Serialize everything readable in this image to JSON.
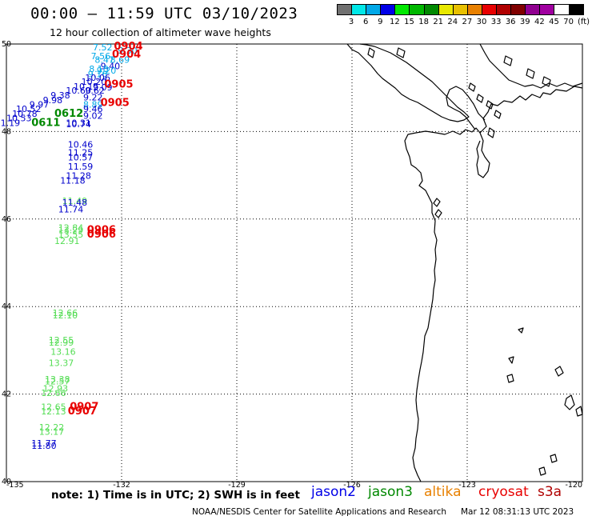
{
  "header": {
    "title": "00:00 — 11:59 UTC 03/10/2023",
    "subtitle": "12 hour collection of altimeter wave heights"
  },
  "colorbar": {
    "colors": [
      "#707070",
      "#00e8e8",
      "#00a8e8",
      "#0000e8",
      "#00e800",
      "#00b800",
      "#008800",
      "#e8e800",
      "#e8c000",
      "#e88000",
      "#e80000",
      "#b00000",
      "#800000",
      "#900090",
      "#a000a0",
      "#ffffff",
      "#000000"
    ],
    "labels": [
      "3",
      "6",
      "9",
      "12",
      "15",
      "18",
      "21",
      "24",
      "27",
      "30",
      "33",
      "36",
      "39",
      "42",
      "45",
      "70"
    ],
    "unit": "(ft)"
  },
  "map": {
    "lon_range": [
      -135,
      -120
    ],
    "lat_range": [
      40,
      50
    ],
    "lon_labels": [
      "-135",
      "-132",
      "-129",
      "-126",
      "-123",
      "-120"
    ],
    "lat_labels": [
      "50",
      "48",
      "46",
      "44",
      "42",
      "40"
    ],
    "lat_label_values": [
      50,
      48,
      46,
      44,
      42,
      40
    ],
    "lon_label_values": [
      -135,
      -132,
      -129,
      -126,
      -123,
      -120
    ]
  },
  "wave_colors": {
    "jason2": "#0000cc",
    "jason3": "#008800",
    "altika": "#e88000",
    "cryosat": "#e80000",
    "s3a": "#cc0000",
    "light_blue": "#00a8e8",
    "light_green": "#55dd55"
  },
  "wave_heights": [
    {
      "v": "7.52",
      "lon": -132.75,
      "lat": 49.85,
      "c": "light_blue"
    },
    {
      "v": "9.30",
      "lon": -132.1,
      "lat": 49.78,
      "c": "light_blue"
    },
    {
      "v": "7.56",
      "lon": -132.8,
      "lat": 49.65,
      "c": "light_blue"
    },
    {
      "v": "8.47",
      "lon": -132.7,
      "lat": 49.57,
      "c": "light_blue"
    },
    {
      "v": "8.69",
      "lon": -132.3,
      "lat": 49.57,
      "c": "light_blue"
    },
    {
      "v": "9.40",
      "lon": -132.55,
      "lat": 49.42,
      "c": "jason2"
    },
    {
      "v": "8.18",
      "lon": -132.85,
      "lat": 49.36,
      "c": "light_blue"
    },
    {
      "v": "9.20",
      "lon": -132.65,
      "lat": 49.32,
      "c": "light_blue"
    },
    {
      "v": "9.16",
      "lon": -132.88,
      "lat": 49.24,
      "c": "light_blue"
    },
    {
      "v": "10.06",
      "lon": -132.95,
      "lat": 49.16,
      "c": "jason2"
    },
    {
      "v": "10.20",
      "lon": -133.05,
      "lat": 49.07,
      "c": "jason2"
    },
    {
      "v": "10.15",
      "lon": -133.25,
      "lat": 48.96,
      "c": "jason2"
    },
    {
      "v": "9.09",
      "lon": -132.75,
      "lat": 48.94,
      "c": "jason2"
    },
    {
      "v": "10.60",
      "lon": -133.45,
      "lat": 48.87,
      "c": "jason2"
    },
    {
      "v": "9.62",
      "lon": -132.95,
      "lat": 48.87,
      "c": "jason2"
    },
    {
      "v": "9.38",
      "lon": -133.85,
      "lat": 48.76,
      "c": "jason2"
    },
    {
      "v": "9.22",
      "lon": -133.0,
      "lat": 48.71,
      "c": "jason2"
    },
    {
      "v": "9.98",
      "lon": -134.05,
      "lat": 48.65,
      "c": "jason2"
    },
    {
      "v": "9.97",
      "lon": -134.4,
      "lat": 48.55,
      "c": "jason2"
    },
    {
      "v": "8.89",
      "lon": -133.0,
      "lat": 48.55,
      "c": "light_blue"
    },
    {
      "v": "10.52",
      "lon": -134.75,
      "lat": 48.45,
      "c": "jason2"
    },
    {
      "v": "9.46",
      "lon": -133.0,
      "lat": 48.45,
      "c": "jason2"
    },
    {
      "v": "10.78",
      "lon": -134.85,
      "lat": 48.34,
      "c": "jason2"
    },
    {
      "v": "9.02",
      "lon": -133.0,
      "lat": 48.29,
      "c": "jason2"
    },
    {
      "v": "10.53",
      "lon": -135.0,
      "lat": 48.24,
      "c": "jason2"
    },
    {
      "v": "11.19",
      "lon": -135.3,
      "lat": 48.13,
      "c": "jason2"
    },
    {
      "v": "10.31",
      "lon": -133.45,
      "lat": 48.13,
      "c": "jason2"
    },
    {
      "v": "10.74",
      "lon": -133.45,
      "lat": 48.1,
      "c": "jason2"
    },
    {
      "v": "10.46",
      "lon": -133.4,
      "lat": 47.63,
      "c": "jason2"
    },
    {
      "v": "11.25",
      "lon": -133.4,
      "lat": 47.45,
      "c": "jason2"
    },
    {
      "v": "10.57",
      "lon": -133.4,
      "lat": 47.34,
      "c": "jason2"
    },
    {
      "v": "11.59",
      "lon": -133.4,
      "lat": 47.13,
      "c": "jason2"
    },
    {
      "v": "11.28",
      "lon": -133.45,
      "lat": 46.92,
      "c": "jason2"
    },
    {
      "v": "11.18",
      "lon": -133.6,
      "lat": 46.81,
      "c": "jason2"
    },
    {
      "v": "11.49",
      "lon": -133.55,
      "lat": 46.34,
      "c": "light_green"
    },
    {
      "v": "11.48",
      "lon": -133.55,
      "lat": 46.31,
      "c": "jason2"
    },
    {
      "v": "11.74",
      "lon": -133.65,
      "lat": 46.15,
      "c": "jason2"
    },
    {
      "v": "12.84",
      "lon": -133.65,
      "lat": 45.73,
      "c": "light_green"
    },
    {
      "v": "13.29",
      "lon": -133.65,
      "lat": 45.68,
      "c": "light_green"
    },
    {
      "v": "13.55",
      "lon": -133.65,
      "lat": 45.58,
      "c": "light_green"
    },
    {
      "v": "12.91",
      "lon": -133.75,
      "lat": 45.43,
      "c": "light_green"
    },
    {
      "v": "12.66",
      "lon": -133.8,
      "lat": 43.78,
      "c": "light_green"
    },
    {
      "v": "12.10",
      "lon": -133.8,
      "lat": 43.73,
      "c": "light_green"
    },
    {
      "v": "12.55",
      "lon": -133.9,
      "lat": 43.16,
      "c": "light_green"
    },
    {
      "v": "12.99",
      "lon": -133.9,
      "lat": 43.11,
      "c": "light_green"
    },
    {
      "v": "13.16",
      "lon": -133.85,
      "lat": 42.9,
      "c": "light_green"
    },
    {
      "v": "13.37",
      "lon": -133.9,
      "lat": 42.64,
      "c": "light_green"
    },
    {
      "v": "13.38",
      "lon": -134.0,
      "lat": 42.27,
      "c": "light_green"
    },
    {
      "v": "12.57",
      "lon": -134.0,
      "lat": 42.22,
      "c": "light_green"
    },
    {
      "v": "12.93",
      "lon": -134.05,
      "lat": 42.06,
      "c": "light_green"
    },
    {
      "v": "12.66",
      "lon": -134.1,
      "lat": 41.96,
      "c": "light_green"
    },
    {
      "v": "12.65",
      "lon": -134.1,
      "lat": 41.64,
      "c": "light_green"
    },
    {
      "v": "12.13",
      "lon": -134.1,
      "lat": 41.54,
      "c": "light_green"
    },
    {
      "v": "12.22",
      "lon": -134.15,
      "lat": 41.17,
      "c": "light_green"
    },
    {
      "v": "13.17",
      "lon": -134.15,
      "lat": 41.07,
      "c": "light_green"
    },
    {
      "v": "11.77",
      "lon": -134.35,
      "lat": 40.8,
      "c": "jason2"
    },
    {
      "v": "11.80",
      "lon": -134.35,
      "lat": 40.75,
      "c": "jason2"
    }
  ],
  "pass_times": [
    {
      "v": "0904",
      "lon": -132.2,
      "lat": 49.87,
      "c": "cryosat"
    },
    {
      "v": "0904",
      "lon": -132.25,
      "lat": 49.69,
      "c": "cryosat"
    },
    {
      "v": "0905",
      "lon": -132.45,
      "lat": 49.0,
      "c": "cryosat"
    },
    {
      "v": "0905",
      "lon": -132.55,
      "lat": 48.58,
      "c": "cryosat"
    },
    {
      "v": "0612",
      "lon": -133.75,
      "lat": 48.34,
      "c": "jason3"
    },
    {
      "v": "0611",
      "lon": -134.35,
      "lat": 48.13,
      "c": "jason3"
    },
    {
      "v": "0906",
      "lon": -132.9,
      "lat": 45.68,
      "c": "cryosat"
    },
    {
      "v": "0906",
      "lon": -132.9,
      "lat": 45.58,
      "c": "cryosat"
    },
    {
      "v": "0907",
      "lon": -133.35,
      "lat": 41.64,
      "c": "cryosat"
    },
    {
      "v": "0907",
      "lon": -133.4,
      "lat": 41.54,
      "c": "cryosat"
    }
  ],
  "footer": {
    "note": "note: 1) Time is in UTC; 2) SWH is in feet",
    "credit": "NOAA/NESDIS Center for Satellite Applications and Research",
    "generated": "Mar 12 08:31:13 UTC 2023"
  },
  "legend": [
    {
      "label": "jason2",
      "color": "#0000e8"
    },
    {
      "label": "jason3",
      "color": "#008800"
    },
    {
      "label": "altika",
      "color": "#e88000"
    },
    {
      "label": "cryosat",
      "color": "#e80000"
    },
    {
      "label": "s3a",
      "color": "#b00000"
    }
  ]
}
